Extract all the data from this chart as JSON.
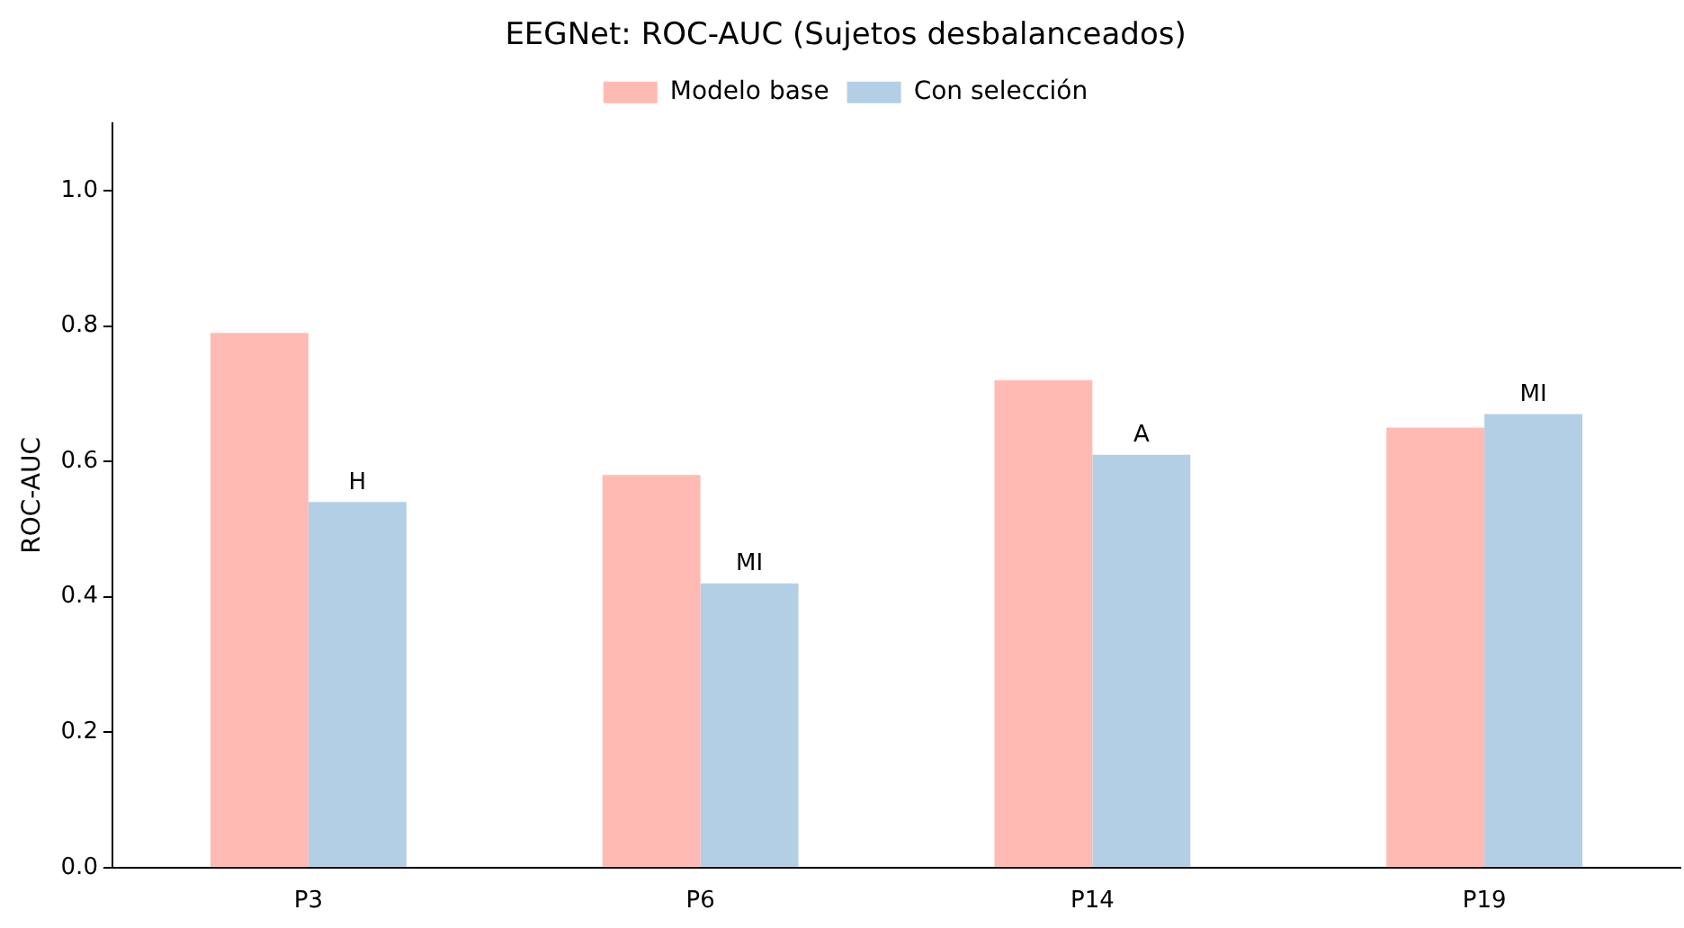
{
  "chart_data": {
    "type": "bar",
    "title": "EEGNet: ROC-AUC (Sujetos desbalanceados)",
    "ylabel": "ROC-AUC",
    "categories": [
      "P3",
      "P6",
      "P14",
      "P19"
    ],
    "series": [
      {
        "name": "Modelo base",
        "color": "#ffbbb3",
        "values": [
          0.79,
          0.58,
          0.72,
          0.65
        ]
      },
      {
        "name": "Con selección",
        "color": "#b3cfe5",
        "values": [
          0.54,
          0.42,
          0.61,
          0.67
        ],
        "value_labels": [
          "H",
          "MI",
          "A",
          "MI"
        ]
      }
    ],
    "ylim": [
      0,
      1.1
    ],
    "yticks": [
      {
        "value": 0,
        "label": "0.0"
      },
      0.2,
      0.4,
      0.6,
      0.8,
      {
        "value": 1,
        "label": "1.0"
      }
    ],
    "legend": "top",
    "grid": false
  }
}
